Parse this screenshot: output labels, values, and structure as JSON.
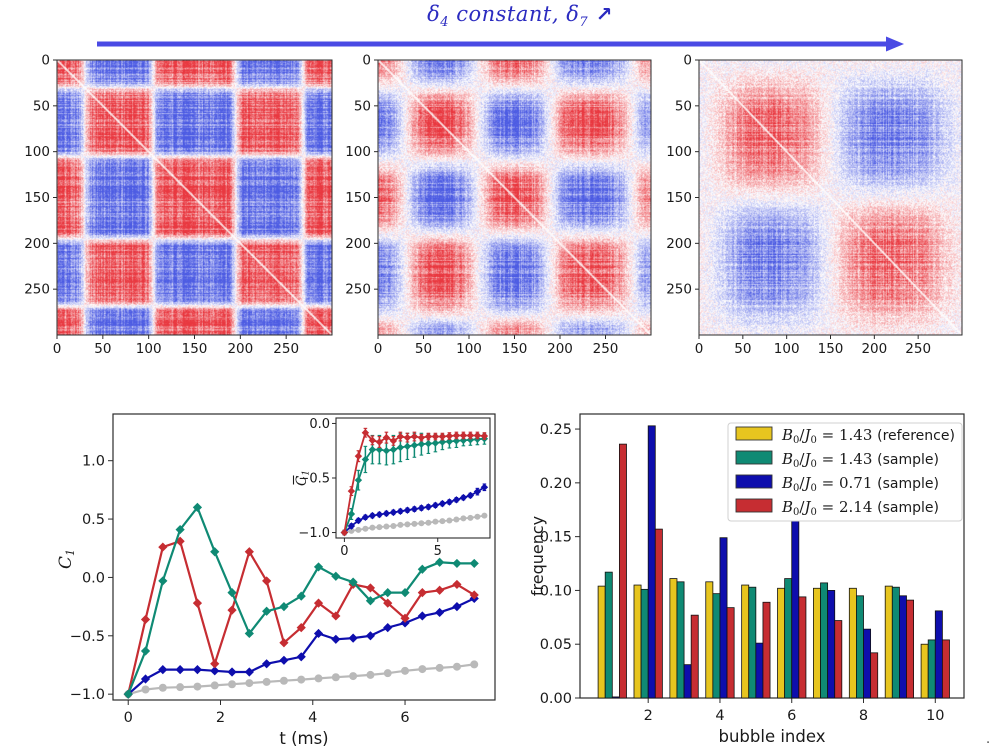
{
  "palette": {
    "gold": "#e7c51f",
    "teal": "#0f8a74",
    "navy": "#0e0ead",
    "red": "#c62d32",
    "gray": "#b9b9b9",
    "arrow_blue": "#4a4ae4",
    "title_blue": "#2b2bc0",
    "axis": "#2b2b2b",
    "text": "#1a1a1a",
    "legend_border": "#d0d0d0"
  },
  "figure": {
    "title": {
      "d1": "δ",
      "s1": "4",
      "mid": " constant, ",
      "d2": "δ",
      "s2": "7",
      "arrow": " ↗"
    }
  },
  "stray": {
    "period": "."
  },
  "chart_data": [
    {
      "type": "heatmap",
      "panel": 1,
      "n": 300,
      "colormap": "blue-white-red",
      "x_ticks": [
        0,
        50,
        100,
        150,
        200,
        250
      ],
      "y_ticks": [
        0,
        50,
        100,
        150,
        200,
        250
      ],
      "block_boundaries": [
        0,
        30,
        105,
        195,
        268,
        300
      ],
      "block_signs": [
        1,
        -1,
        1,
        -1,
        1
      ],
      "smoothing": 4,
      "seed": 101
    },
    {
      "type": "heatmap",
      "panel": 2,
      "n": 300,
      "colormap": "blue-white-red",
      "x_ticks": [
        0,
        50,
        100,
        150,
        200,
        250
      ],
      "y_ticks": [
        0,
        50,
        100,
        150,
        200,
        250
      ],
      "block_boundaries": [
        0,
        30,
        110,
        190,
        280,
        300
      ],
      "block_signs": [
        1,
        -1,
        1,
        -1,
        1
      ],
      "smoothing": 14,
      "seed": 202
    },
    {
      "type": "heatmap",
      "panel": 3,
      "n": 300,
      "colormap": "blue-white-red",
      "x_ticks": [
        0,
        50,
        100,
        150,
        200,
        250
      ],
      "y_ticks": [
        0,
        50,
        100,
        150,
        200,
        250
      ],
      "block_boundaries": [
        0,
        15,
        150,
        290,
        300
      ],
      "block_signs": [
        -1,
        1,
        -1,
        1
      ],
      "smoothing": 30,
      "seed": 303
    },
    {
      "type": "line",
      "xlabel": "t (ms)",
      "ylabel": {
        "letter": "C",
        "sub": "1",
        "bar": false
      },
      "xlim": [
        -0.33,
        7.95
      ],
      "ylim": [
        -1.05,
        1.4
      ],
      "xticks": [
        {
          "v": 0,
          "label": "0"
        },
        {
          "v": 2,
          "label": "2"
        },
        {
          "v": 4,
          "label": "4"
        },
        {
          "v": 6,
          "label": "6"
        }
      ],
      "yticks": [
        {
          "v": -1,
          "label": "−1.0"
        },
        {
          "v": -0.5,
          "label": "−0.5"
        },
        {
          "v": 0,
          "label": "0.0"
        },
        {
          "v": 0.5,
          "label": "0.5"
        },
        {
          "v": 1,
          "label": "1.0"
        }
      ],
      "x": [
        0,
        0.375,
        0.75,
        1.125,
        1.5,
        1.875,
        2.25,
        2.625,
        3,
        3.375,
        3.75,
        4.125,
        4.5,
        4.875,
        5.25,
        5.625,
        6,
        6.375,
        6.75,
        7.125,
        7.5
      ],
      "series": [
        {
          "name": "reference",
          "color_key": "gray",
          "marker": "circle",
          "err": 0,
          "values": [
            -1.0,
            -0.96,
            -0.945,
            -0.94,
            -0.935,
            -0.925,
            -0.915,
            -0.905,
            -0.895,
            -0.885,
            -0.875,
            -0.865,
            -0.855,
            -0.845,
            -0.835,
            -0.82,
            -0.8,
            -0.785,
            -0.775,
            -0.765,
            -0.745
          ]
        },
        {
          "name": "B0/J0 = 0.71 (sample)",
          "color_key": "navy",
          "marker": "diamond",
          "err": 0.03,
          "values": [
            -1.0,
            -0.87,
            -0.79,
            -0.79,
            -0.79,
            -0.8,
            -0.81,
            -0.81,
            -0.74,
            -0.71,
            -0.68,
            -0.48,
            -0.53,
            -0.52,
            -0.5,
            -0.43,
            -0.39,
            -0.33,
            -0.3,
            -0.25,
            -0.18
          ]
        },
        {
          "name": "B0/J0 = 2.14 (sample)",
          "color_key": "red",
          "marker": "diamond",
          "err": 0.03,
          "values": [
            -1.0,
            -0.36,
            0.26,
            0.31,
            -0.22,
            -0.74,
            -0.28,
            0.22,
            -0.03,
            -0.56,
            -0.43,
            -0.22,
            -0.33,
            -0.06,
            -0.09,
            -0.22,
            -0.35,
            -0.13,
            -0.11,
            -0.06,
            -0.15
          ]
        },
        {
          "name": "B0/J0 = 1.43 (sample)",
          "color_key": "teal",
          "marker": "diamond",
          "err": 0.03,
          "values": [
            -1.0,
            -0.63,
            -0.03,
            0.41,
            0.6,
            0.22,
            -0.13,
            -0.48,
            -0.29,
            -0.25,
            -0.16,
            0.09,
            0.01,
            -0.04,
            -0.2,
            -0.13,
            -0.13,
            0.07,
            0.13,
            0.12,
            0.12
          ]
        }
      ],
      "inset": {
        "ylabel": {
          "letter": "C",
          "sub": "1",
          "bar": true
        },
        "xlim": [
          -0.45,
          7.8
        ],
        "ylim": [
          -1.05,
          0.05
        ],
        "xticks": [
          {
            "v": 0,
            "label": "0"
          },
          {
            "v": 5,
            "label": "5"
          }
        ],
        "yticks": [
          {
            "v": 0,
            "label": "0.0"
          },
          {
            "v": -0.5,
            "label": "−0.5"
          },
          {
            "v": -1,
            "label": "−1.0"
          }
        ],
        "x": [
          0,
          0.375,
          0.75,
          1.125,
          1.5,
          1.875,
          2.25,
          2.625,
          3,
          3.375,
          3.75,
          4.125,
          4.5,
          4.875,
          5.25,
          5.625,
          6,
          6.375,
          6.75,
          7.125,
          7.5
        ],
        "series": [
          {
            "name": "reference",
            "color_key": "gray",
            "marker": "circle",
            "values": [
              -1.0,
              -0.985,
              -0.975,
              -0.965,
              -0.955,
              -0.95,
              -0.945,
              -0.94,
              -0.93,
              -0.925,
              -0.92,
              -0.915,
              -0.91,
              -0.9,
              -0.895,
              -0.89,
              -0.88,
              -0.87,
              -0.865,
              -0.855,
              -0.845
            ],
            "errors": [
              0.01,
              0.01,
              0.01,
              0.01,
              0.01,
              0.01,
              0.01,
              0.01,
              0.01,
              0.01,
              0.01,
              0.01,
              0.01,
              0.01,
              0.01,
              0.01,
              0.01,
              0.01,
              0.01,
              0.01,
              0.01
            ]
          },
          {
            "name": "B0/J0 = 0.71 (sample)",
            "color_key": "navy",
            "marker": "diamond",
            "values": [
              -1.0,
              -0.94,
              -0.89,
              -0.86,
              -0.845,
              -0.835,
              -0.825,
              -0.815,
              -0.805,
              -0.795,
              -0.785,
              -0.775,
              -0.765,
              -0.75,
              -0.735,
              -0.72,
              -0.7,
              -0.68,
              -0.66,
              -0.625,
              -0.585
            ],
            "errors": [
              0.02,
              0.02,
              0.02,
              0.02,
              0.02,
              0.02,
              0.02,
              0.02,
              0.02,
              0.02,
              0.02,
              0.02,
              0.02,
              0.02,
              0.02,
              0.02,
              0.02,
              0.02,
              0.02,
              0.03,
              0.03
            ]
          },
          {
            "name": "B0/J0 = 1.43 (sample)",
            "color_key": "teal",
            "marker": "diamond",
            "values": [
              -1.0,
              -0.83,
              -0.52,
              -0.33,
              -0.24,
              -0.24,
              -0.25,
              -0.24,
              -0.22,
              -0.21,
              -0.2,
              -0.19,
              -0.185,
              -0.18,
              -0.17,
              -0.165,
              -0.16,
              -0.155,
              -0.15,
              -0.145,
              -0.14
            ],
            "errors": [
              0.02,
              0.05,
              0.09,
              0.12,
              0.13,
              0.13,
              0.13,
              0.13,
              0.13,
              0.12,
              0.11,
              0.1,
              0.09,
              0.08,
              0.07,
              0.06,
              0.06,
              0.05,
              0.05,
              0.05,
              0.05
            ]
          },
          {
            "name": "B0/J0 = 2.14 (sample)",
            "color_key": "red",
            "marker": "diamond",
            "values": [
              -1.0,
              -0.62,
              -0.3,
              -0.085,
              -0.155,
              -0.17,
              -0.13,
              -0.16,
              -0.12,
              -0.13,
              -0.12,
              -0.13,
              -0.12,
              -0.12,
              -0.12,
              -0.115,
              -0.11,
              -0.11,
              -0.11,
              -0.11,
              -0.115
            ],
            "errors": [
              0.02,
              0.04,
              0.05,
              0.04,
              0.04,
              0.05,
              0.05,
              0.04,
              0.04,
              0.04,
              0.04,
              0.03,
              0.03,
              0.03,
              0.03,
              0.03,
              0.03,
              0.03,
              0.03,
              0.03,
              0.03
            ]
          }
        ]
      }
    },
    {
      "type": "bar",
      "xlabel": "bubble index",
      "ylabel": "frequency",
      "categories": [
        1,
        2,
        3,
        4,
        5,
        6,
        7,
        8,
        9,
        10
      ],
      "xticks": [
        2,
        4,
        6,
        8,
        10
      ],
      "yticks": [
        {
          "v": 0,
          "label": "0.00"
        },
        {
          "v": 0.05,
          "label": "0.05"
        },
        {
          "v": 0.1,
          "label": "0.10"
        },
        {
          "v": 0.15,
          "label": "0.15"
        },
        {
          "v": 0.2,
          "label": "0.20"
        },
        {
          "v": 0.25,
          "label": "0.25"
        }
      ],
      "ylim": [
        0,
        0.264
      ],
      "series": [
        {
          "label": {
            "num": "B",
            "num_sub": "0",
            "den": "J",
            "den_sub": "0",
            "value": "1.43",
            "note": "(reference)"
          },
          "color_key": "gold",
          "values": [
            0.104,
            0.105,
            0.111,
            0.108,
            0.105,
            0.102,
            0.102,
            0.102,
            0.104,
            0.05
          ]
        },
        {
          "label": {
            "num": "B",
            "num_sub": "0",
            "den": "J",
            "den_sub": "0",
            "value": "1.43",
            "note": "(sample)"
          },
          "color_key": "teal",
          "values": [
            0.117,
            0.101,
            0.108,
            0.097,
            0.103,
            0.111,
            0.107,
            0.095,
            0.103,
            0.054
          ]
        },
        {
          "label": {
            "num": "B",
            "num_sub": "0",
            "den": "J",
            "den_sub": "0",
            "value": "0.71",
            "note": "(sample)"
          },
          "color_key": "navy",
          "values": [
            0.001,
            0.253,
            0.031,
            0.149,
            0.051,
            0.165,
            0.1,
            0.064,
            0.095,
            0.081
          ]
        },
        {
          "label": {
            "num": "B",
            "num_sub": "0",
            "den": "J",
            "den_sub": "0",
            "value": "2.14",
            "note": "(sample)"
          },
          "color_key": "red",
          "values": [
            0.236,
            0.157,
            0.077,
            0.084,
            0.089,
            0.094,
            0.072,
            0.042,
            0.091,
            0.054
          ]
        }
      ],
      "legend_position": "upper right"
    }
  ]
}
